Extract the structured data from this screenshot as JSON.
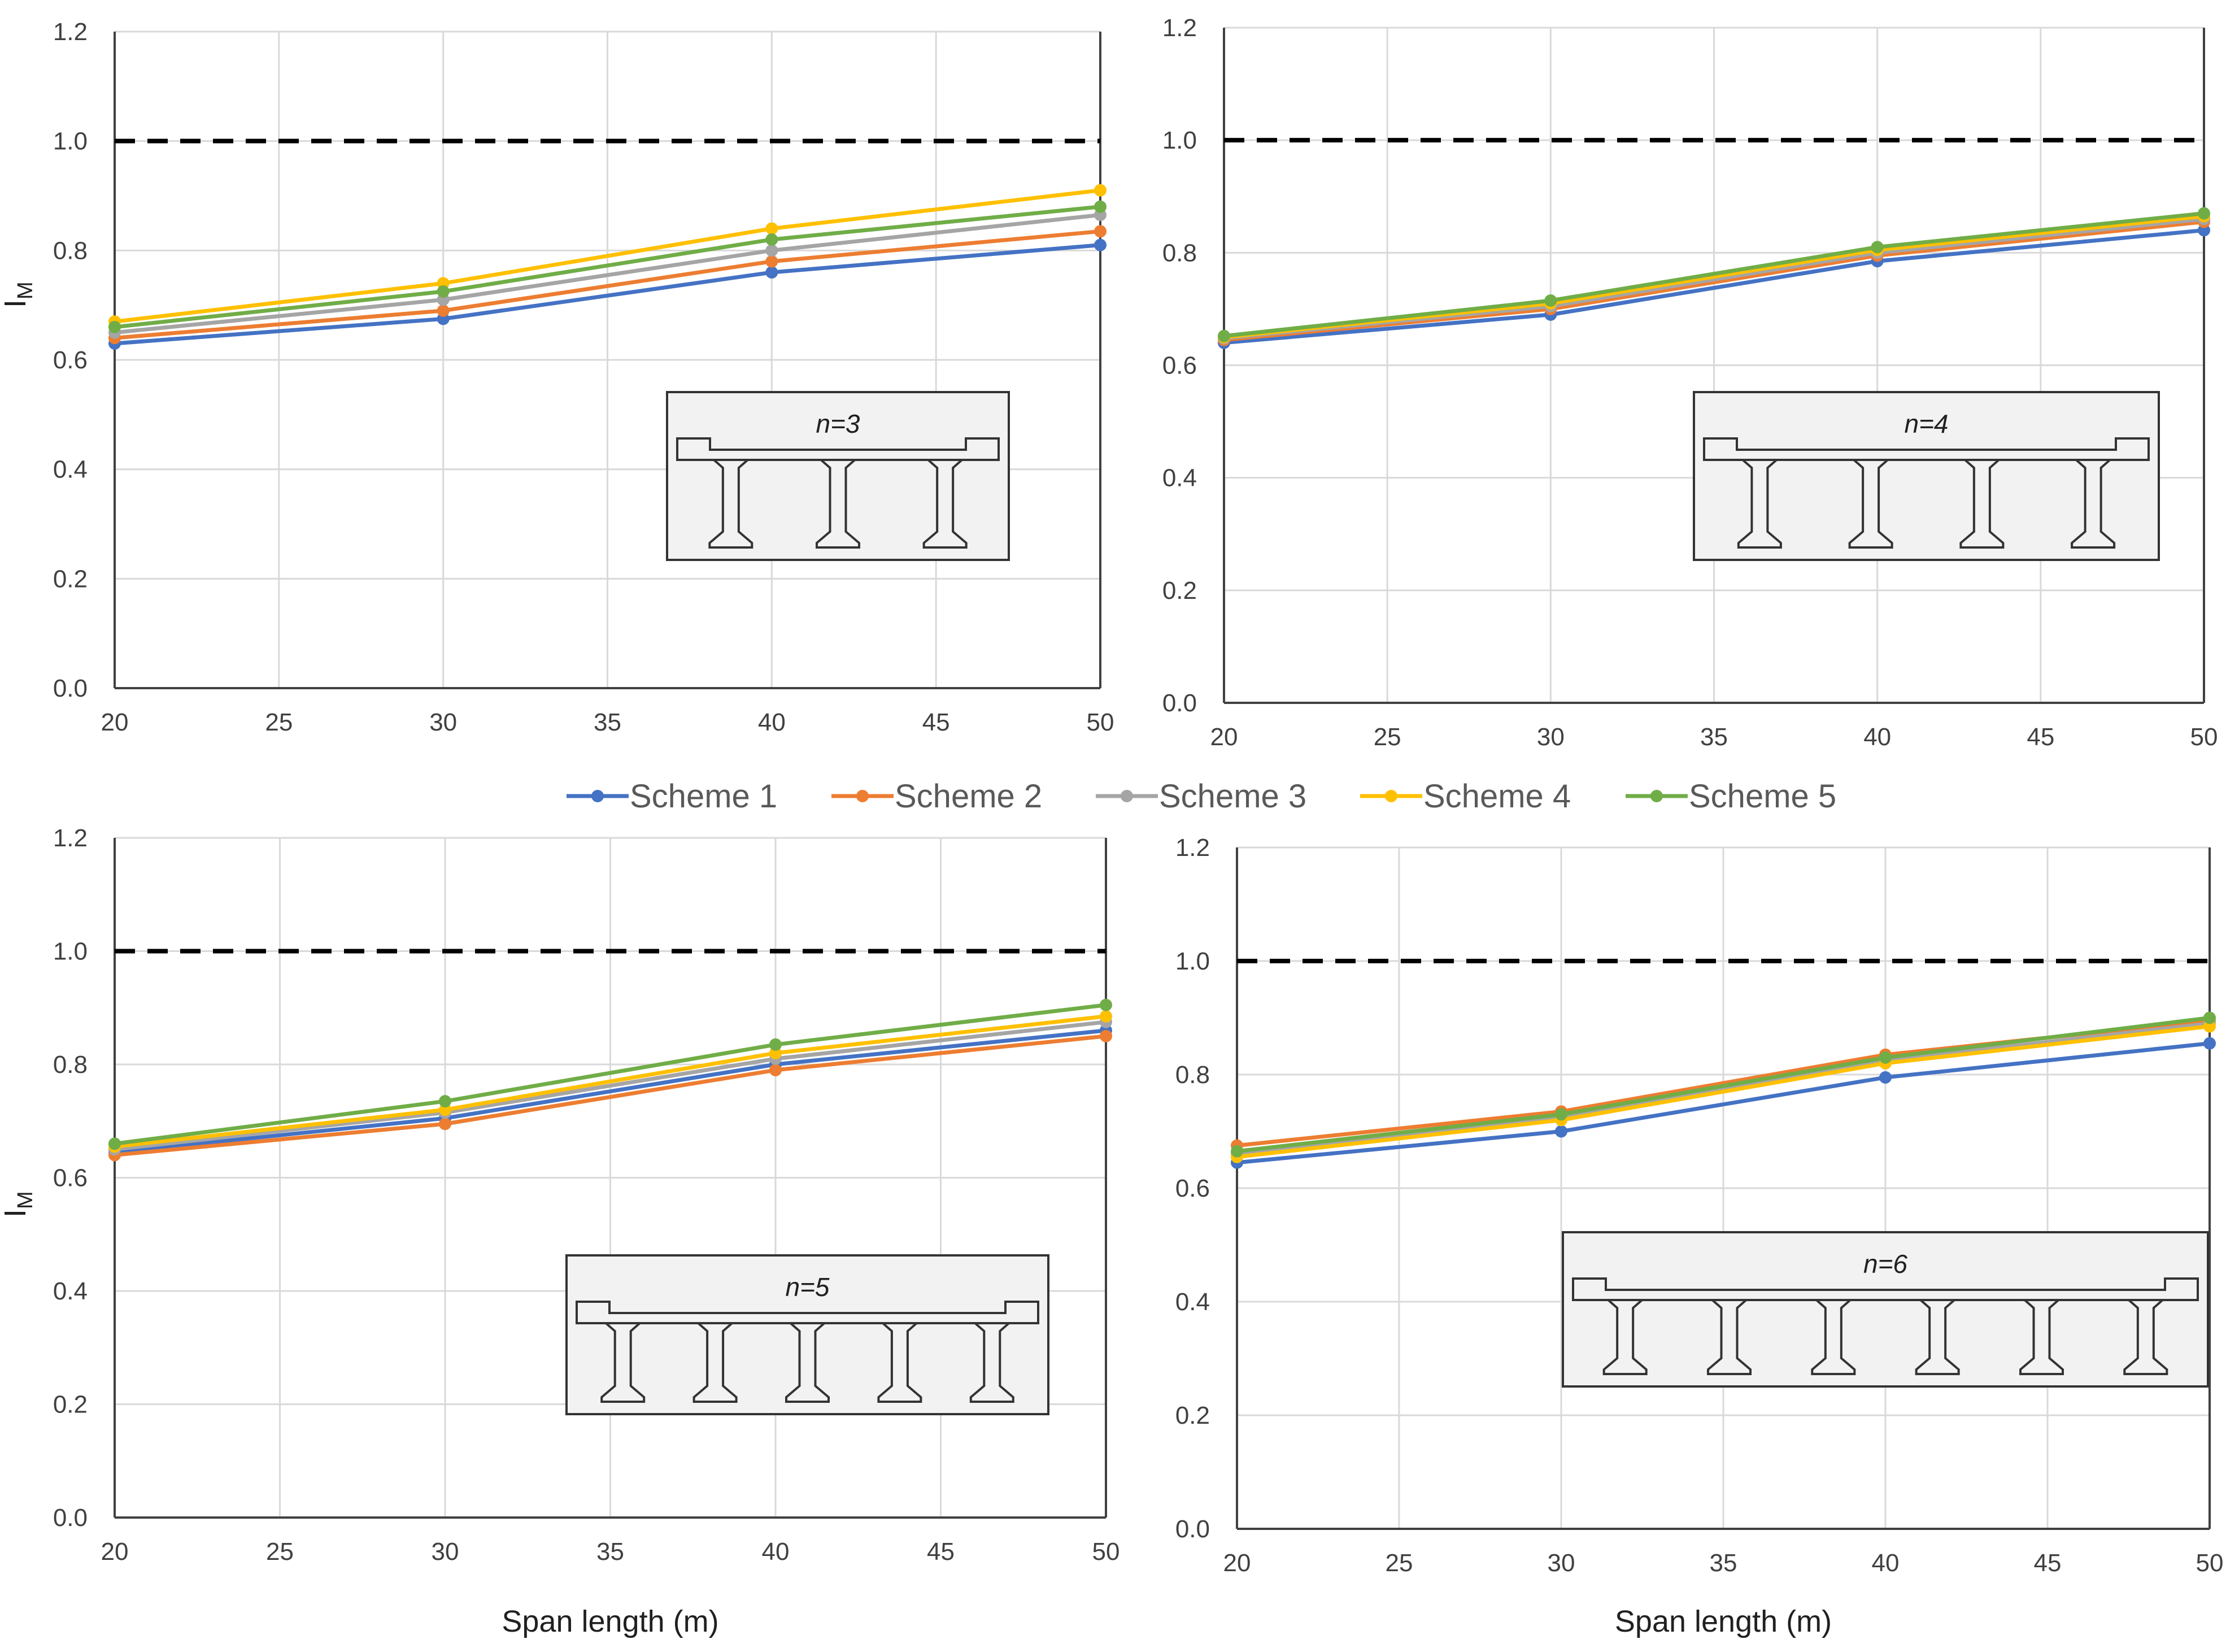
{
  "figure": {
    "legend": [
      "Scheme 1",
      "Scheme 2",
      "Scheme 3",
      "Scheme 4",
      "Scheme 5"
    ],
    "colors": [
      "#4472C4",
      "#ED7D31",
      "#A5A5A5",
      "#FFC000",
      "#70AD47"
    ],
    "reference_color": "#000000"
  },
  "chart_data": [
    {
      "type": "line",
      "x": [
        20,
        30,
        40,
        50
      ],
      "xlim": [
        20,
        50
      ],
      "ylim": [
        0,
        1.2
      ],
      "xticks": [
        "20",
        "25",
        "30",
        "35",
        "40",
        "45",
        "50"
      ],
      "yticks": [
        "0.0",
        "0.2",
        "0.4",
        "0.6",
        "0.8",
        "1.0",
        "1.2"
      ],
      "ylabel": "I",
      "ylabel_sub": "M",
      "xlabel": "",
      "reference_line": 1.0,
      "inset_label": "n=3",
      "girders": 3,
      "series": [
        {
          "name": "Scheme 1",
          "values": [
            0.63,
            0.675,
            0.76,
            0.81
          ]
        },
        {
          "name": "Scheme 2",
          "values": [
            0.64,
            0.69,
            0.78,
            0.835
          ]
        },
        {
          "name": "Scheme 3",
          "values": [
            0.65,
            0.71,
            0.8,
            0.865
          ]
        },
        {
          "name": "Scheme 4",
          "values": [
            0.67,
            0.74,
            0.84,
            0.91
          ]
        },
        {
          "name": "Scheme 5",
          "values": [
            0.66,
            0.725,
            0.82,
            0.88
          ]
        }
      ]
    },
    {
      "type": "line",
      "x": [
        20,
        30,
        40,
        50
      ],
      "xlim": [
        20,
        50
      ],
      "ylim": [
        0,
        1.2
      ],
      "xticks": [
        "20",
        "25",
        "30",
        "35",
        "40",
        "45",
        "50"
      ],
      "yticks": [
        "0.0",
        "0.2",
        "0.4",
        "0.6",
        "0.8",
        "1.0",
        "1.2"
      ],
      "ylabel": "",
      "ylabel_sub": "",
      "xlabel": "",
      "reference_line": 1.0,
      "inset_label": "n=4",
      "girders": 4,
      "series": [
        {
          "name": "Scheme 1",
          "values": [
            0.64,
            0.69,
            0.785,
            0.84
          ]
        },
        {
          "name": "Scheme 2",
          "values": [
            0.645,
            0.7,
            0.795,
            0.855
          ]
        },
        {
          "name": "Scheme 3",
          "values": [
            0.648,
            0.705,
            0.8,
            0.86
          ]
        },
        {
          "name": "Scheme 4",
          "values": [
            0.65,
            0.71,
            0.805,
            0.865
          ]
        },
        {
          "name": "Scheme 5",
          "values": [
            0.652,
            0.715,
            0.81,
            0.87
          ]
        }
      ]
    },
    {
      "type": "line",
      "x": [
        20,
        30,
        40,
        50
      ],
      "xlim": [
        20,
        50
      ],
      "ylim": [
        0,
        1.2
      ],
      "xticks": [
        "20",
        "25",
        "30",
        "35",
        "40",
        "45",
        "50"
      ],
      "yticks": [
        "0.0",
        "0.2",
        "0.4",
        "0.6",
        "0.8",
        "1.0",
        "1.2"
      ],
      "ylabel": "I",
      "ylabel_sub": "M",
      "xlabel": "Span length (m)",
      "reference_line": 1.0,
      "inset_label": "n=5",
      "girders": 5,
      "series": [
        {
          "name": "Scheme 1",
          "values": [
            0.645,
            0.705,
            0.8,
            0.86
          ]
        },
        {
          "name": "Scheme 2",
          "values": [
            0.64,
            0.695,
            0.79,
            0.85
          ]
        },
        {
          "name": "Scheme 3",
          "values": [
            0.65,
            0.715,
            0.81,
            0.875
          ]
        },
        {
          "name": "Scheme 4",
          "values": [
            0.655,
            0.72,
            0.82,
            0.885
          ]
        },
        {
          "name": "Scheme 5",
          "values": [
            0.66,
            0.735,
            0.835,
            0.905
          ]
        }
      ]
    },
    {
      "type": "line",
      "x": [
        20,
        30,
        40,
        50
      ],
      "xlim": [
        20,
        50
      ],
      "ylim": [
        0,
        1.2
      ],
      "xticks": [
        "20",
        "25",
        "30",
        "35",
        "40",
        "45",
        "50"
      ],
      "yticks": [
        "0.0",
        "0.2",
        "0.4",
        "0.6",
        "0.8",
        "1.0",
        "1.2"
      ],
      "ylabel": "",
      "ylabel_sub": "",
      "xlabel": "Span length (m)",
      "reference_line": 1.0,
      "inset_label": "n=6",
      "girders": 6,
      "series": [
        {
          "name": "Scheme 1",
          "values": [
            0.645,
            0.7,
            0.795,
            0.855
          ]
        },
        {
          "name": "Scheme 2",
          "values": [
            0.675,
            0.735,
            0.835,
            0.895
          ]
        },
        {
          "name": "Scheme 3",
          "values": [
            0.66,
            0.725,
            0.825,
            0.89
          ]
        },
        {
          "name": "Scheme 4",
          "values": [
            0.655,
            0.72,
            0.82,
            0.885
          ]
        },
        {
          "name": "Scheme 5",
          "values": [
            0.665,
            0.73,
            0.83,
            0.9
          ]
        }
      ]
    }
  ]
}
